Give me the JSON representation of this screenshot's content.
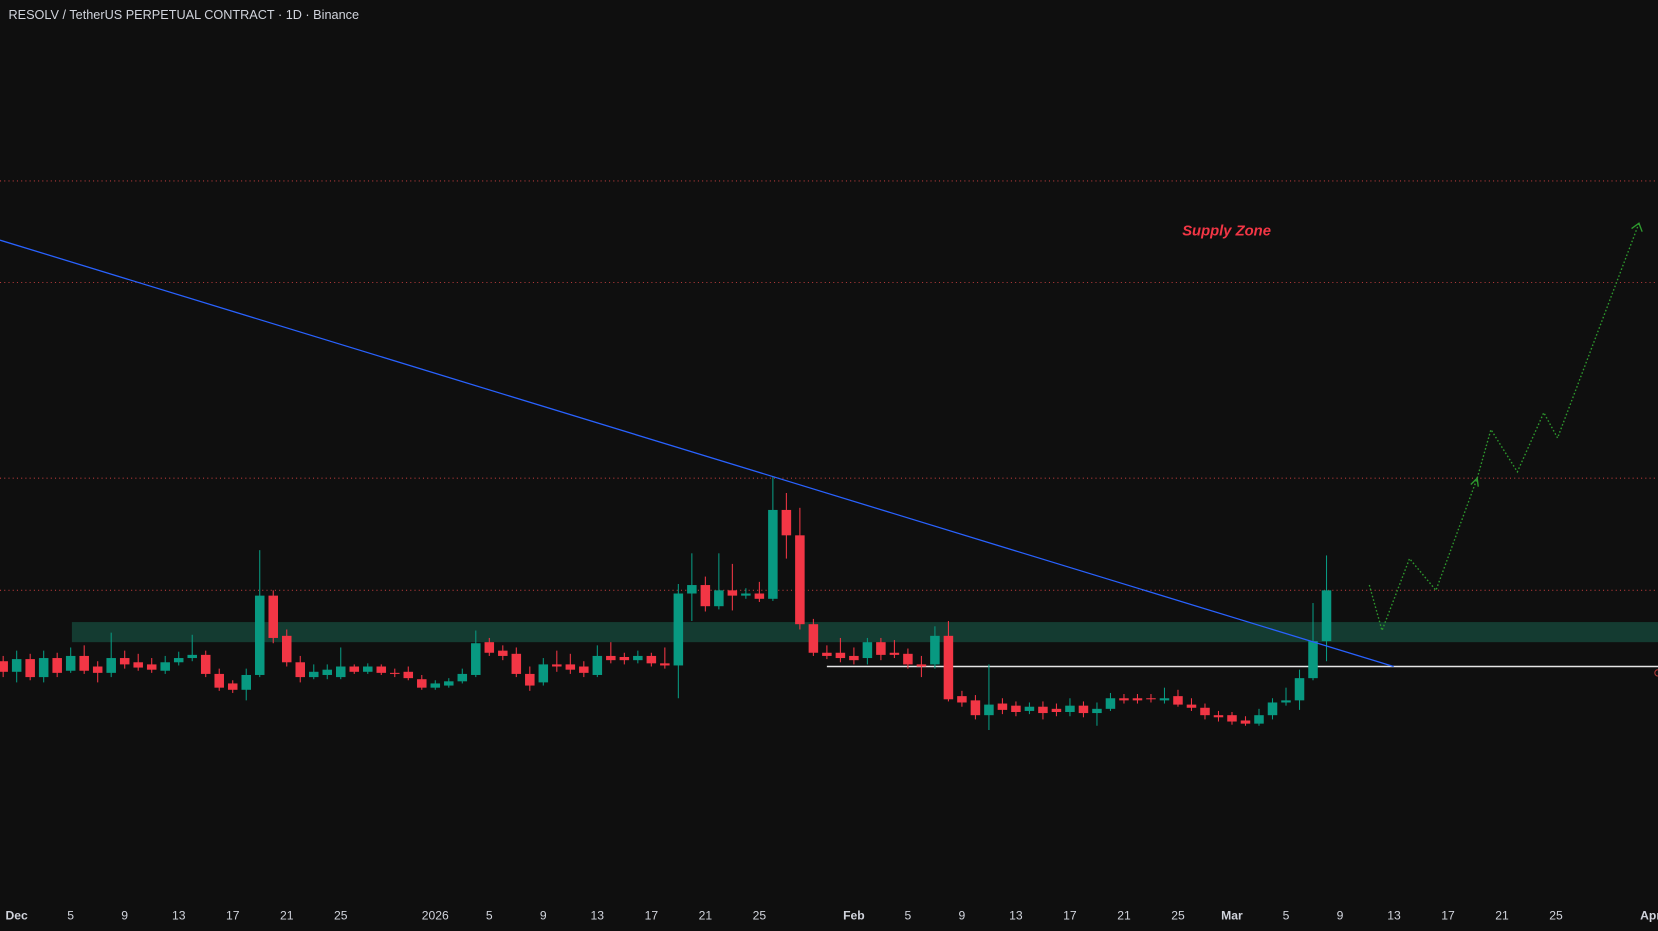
{
  "chart_data": {
    "type": "candlestick",
    "title": "RESOLV / TetherUS PERPETUAL CONTRACT · 1D · Binance",
    "annotation": "Supply Zone",
    "up_color": "#089981",
    "down_color": "#f23645",
    "ylim": [
      -180,
      700
    ],
    "categories": [
      null,
      "Dec",
      null,
      null,
      null,
      "5",
      null,
      null,
      null,
      "9",
      null,
      null,
      null,
      "13",
      null,
      null,
      null,
      "17",
      null,
      null,
      null,
      "21",
      null,
      null,
      null,
      "25",
      null,
      null,
      null,
      null,
      null,
      null,
      "2026",
      null,
      null,
      null,
      "5",
      null,
      null,
      null,
      "9",
      null,
      null,
      null,
      "13",
      null,
      null,
      null,
      "17",
      null,
      null,
      null,
      "21",
      null,
      null,
      null,
      "25",
      null,
      null,
      null,
      null,
      null,
      null,
      "Feb",
      null,
      null,
      null,
      "5",
      null,
      null,
      null,
      "9",
      null,
      null,
      null,
      "13",
      null,
      null,
      null,
      "17",
      null,
      null,
      null,
      "21",
      null,
      null,
      null,
      "25",
      null,
      null,
      null,
      "Mar",
      null,
      null,
      null,
      "5",
      null,
      null,
      null,
      "9",
      null,
      null,
      null,
      "13",
      null,
      null,
      null,
      "17",
      null,
      null,
      null,
      "21",
      null,
      null,
      null,
      "25",
      null,
      null,
      null,
      null,
      null,
      null,
      "Apr"
    ],
    "open": [
      75,
      65,
      77,
      60,
      78,
      66,
      80,
      70,
      64,
      78,
      74,
      72,
      66,
      74,
      78,
      81,
      63,
      54,
      48,
      62,
      137,
      99,
      74,
      60,
      62,
      60,
      70,
      65,
      70,
      64,
      65,
      58,
      50,
      52,
      56,
      62,
      93,
      85,
      82,
      63,
      55,
      72,
      72,
      70,
      62,
      80,
      79,
      76,
      80,
      73,
      71,
      139,
      147,
      127,
      142,
      137,
      139,
      134,
      218,
      194,
      110,
      83,
      83,
      80,
      78,
      93,
      83,
      82,
      72,
      72,
      99,
      42,
      38,
      24,
      35,
      33,
      28,
      32,
      30,
      27,
      33,
      26,
      30,
      40,
      40,
      40,
      38,
      42,
      34,
      31,
      24,
      24,
      19,
      16,
      24,
      36,
      38,
      59,
      94,
      null,
      null,
      null,
      null,
      null,
      null,
      null,
      null,
      null,
      null,
      null,
      null,
      null,
      null,
      null,
      null,
      null,
      null,
      null,
      null,
      null,
      null,
      null,
      null
    ],
    "high": [
      80,
      85,
      82,
      85,
      83,
      88,
      90,
      75,
      102,
      85,
      82,
      78,
      80,
      84,
      100,
      85,
      68,
      57,
      68,
      180,
      142,
      105,
      80,
      72,
      72,
      88,
      72,
      73,
      72,
      68,
      70,
      62,
      57,
      59,
      68,
      104,
      97,
      90,
      88,
      70,
      78,
      85,
      82,
      75,
      90,
      93,
      83,
      85,
      83,
      88,
      148,
      177,
      155,
      177,
      167,
      144,
      150,
      250,
      234,
      220,
      115,
      90,
      97,
      88,
      97,
      97,
      95,
      87,
      80,
      108,
      113,
      47,
      43,
      72,
      40,
      37,
      36,
      37,
      35,
      40,
      37,
      36,
      45,
      44,
      44,
      44,
      50,
      48,
      40,
      35,
      28,
      27,
      23,
      30,
      40,
      50,
      67,
      130,
      175,
      null,
      null,
      null,
      null,
      null,
      null,
      null,
      null,
      null,
      null,
      null,
      null,
      null,
      null,
      null,
      null,
      null,
      null,
      null,
      null,
      null,
      null,
      null,
      null
    ],
    "low": [
      60,
      55,
      57,
      55,
      60,
      64,
      63,
      55,
      60,
      68,
      66,
      64,
      63,
      71,
      75,
      60,
      47,
      45,
      38,
      60,
      92,
      70,
      55,
      58,
      58,
      58,
      63,
      63,
      62,
      60,
      57,
      48,
      48,
      50,
      54,
      60,
      80,
      76,
      60,
      47,
      52,
      65,
      63,
      60,
      60,
      73,
      72,
      73,
      70,
      68,
      40,
      113,
      122,
      124,
      123,
      134,
      131,
      132,
      172,
      105,
      80,
      77,
      74,
      72,
      72,
      76,
      78,
      68,
      60,
      68,
      37,
      32,
      20,
      10,
      25,
      23,
      25,
      20,
      23,
      23,
      22,
      14,
      28,
      35,
      35,
      36,
      35,
      32,
      28,
      20,
      18,
      15,
      14,
      14,
      20,
      33,
      29,
      57,
      75,
      null,
      null,
      null,
      null,
      null,
      null,
      null,
      null,
      null,
      null,
      null,
      null,
      null,
      null,
      null,
      null,
      null,
      null,
      null,
      null,
      null,
      null,
      null,
      null
    ],
    "close": [
      65,
      77,
      60,
      78,
      64,
      80,
      66,
      64,
      78,
      72,
      69,
      67,
      74,
      78,
      81,
      63,
      50,
      48,
      62,
      137,
      97,
      74,
      60,
      65,
      67,
      70,
      65,
      70,
      64,
      63,
      59,
      50,
      54,
      56,
      63,
      92,
      83,
      80,
      63,
      52,
      72,
      70,
      67,
      64,
      80,
      76,
      76,
      80,
      73,
      71,
      139,
      147,
      127,
      142,
      137,
      139,
      134,
      218,
      194,
      110,
      83,
      80,
      78,
      76,
      93,
      81,
      81,
      72,
      70,
      99,
      39,
      36,
      24,
      34,
      29,
      27,
      32,
      26,
      27,
      33,
      26,
      30,
      40,
      38,
      38,
      39,
      40,
      34,
      31,
      24,
      22,
      18,
      16,
      24,
      36,
      38,
      59,
      94,
      142,
      null,
      null,
      null,
      null,
      null,
      null,
      null,
      null,
      null,
      null,
      null,
      null,
      null,
      null,
      null,
      null,
      null,
      null,
      null,
      null,
      null,
      null,
      null,
      null
    ]
  }
}
